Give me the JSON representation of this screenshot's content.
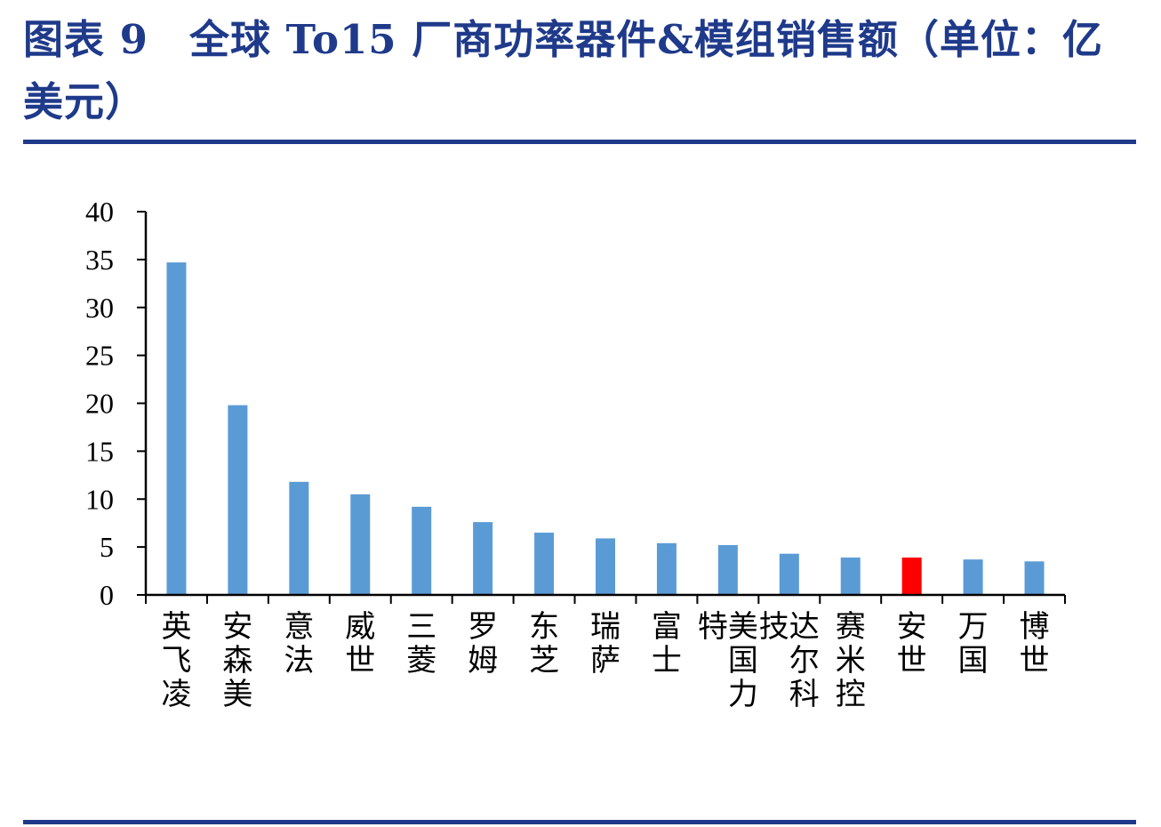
{
  "header": {
    "title": "图表 9　全球 To15 厂商功率器件&模组销售额（单位：亿美元）"
  },
  "chart_data": {
    "type": "bar",
    "title": "",
    "xlabel": "",
    "ylabel": "",
    "ylim": [
      0,
      40
    ],
    "yticks": [
      "0",
      "5",
      "10",
      "15",
      "20",
      "25",
      "30",
      "35",
      "40"
    ],
    "grid": false,
    "categories": [
      "英飞凌",
      "安森美",
      "意法",
      "威世",
      "三菱",
      "罗姆",
      "东芝",
      "瑞萨",
      "富士",
      "美国力特",
      "达尔科技",
      "赛米控",
      "安世",
      "万国",
      "博世"
    ],
    "values": [
      34.7,
      19.8,
      11.8,
      10.5,
      9.2,
      7.6,
      6.5,
      5.9,
      5.4,
      5.2,
      4.3,
      3.9,
      3.9,
      3.7,
      3.5
    ],
    "colors": {
      "default": "#5b9bd5",
      "highlight": "#ff0000",
      "axis": "#000000"
    },
    "highlight_category": "安世"
  }
}
